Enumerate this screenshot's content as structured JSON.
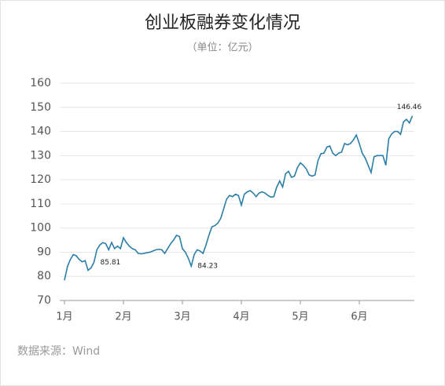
{
  "chart_data": {
    "type": "line",
    "title": "创业板融券变化情况",
    "subtitle": "（单位：亿元）",
    "source": "数据来源：Wind",
    "categories": [
      "1月",
      null,
      null,
      null,
      null,
      null,
      null,
      null,
      null,
      null,
      null,
      null,
      null,
      null,
      null,
      null,
      null,
      null,
      null,
      null,
      "2月",
      null,
      null,
      null,
      null,
      null,
      null,
      null,
      null,
      null,
      null,
      null,
      null,
      null,
      null,
      null,
      null,
      null,
      null,
      null,
      "3月",
      null,
      null,
      null,
      null,
      null,
      null,
      null,
      null,
      null,
      null,
      null,
      null,
      null,
      null,
      null,
      null,
      null,
      null,
      null,
      "4月",
      null,
      null,
      null,
      null,
      null,
      null,
      null,
      null,
      null,
      null,
      null,
      null,
      null,
      null,
      null,
      null,
      null,
      null,
      null,
      "5月",
      null,
      null,
      null,
      null,
      null,
      null,
      null,
      null,
      null,
      null,
      null,
      null,
      null,
      null,
      null,
      null,
      null,
      null,
      null,
      "6月",
      null,
      null,
      null,
      null,
      null,
      null,
      null,
      null,
      null,
      null,
      null,
      null,
      null,
      null,
      null,
      null,
      null,
      null
    ],
    "series": [
      {
        "color": "#2b7ea6",
        "values": [
          78.4,
          84,
          87,
          89,
          88.5,
          87,
          86,
          86.5,
          82.5,
          83.5,
          85.81,
          91,
          93,
          94,
          93.5,
          91,
          94,
          91.5,
          92.5,
          91.5,
          96,
          94,
          92.5,
          91.5,
          91,
          89.5,
          89.3,
          89.5,
          89.8,
          90,
          90.5,
          91,
          91.2,
          91,
          89.5,
          91.5,
          93.5,
          95,
          97,
          96.5,
          91.5,
          90,
          87.5,
          84.23,
          89,
          91,
          90.5,
          89.5,
          93,
          97,
          100.5,
          101,
          102,
          104,
          108,
          112,
          113.5,
          113,
          114,
          113.5,
          109.5,
          114,
          115,
          115.5,
          114.5,
          113,
          114.5,
          115,
          114.5,
          113.5,
          112.8,
          113,
          117,
          119.5,
          117,
          122.5,
          123.5,
          121,
          121.5,
          125,
          127,
          126,
          124.5,
          122,
          121.5,
          122,
          128,
          130.8,
          131,
          133.5,
          134,
          131,
          130,
          131,
          131.5,
          135,
          134.5,
          135,
          136.5,
          138.5,
          135,
          131,
          129,
          126,
          123,
          129.5,
          130,
          130,
          130,
          126,
          137,
          139,
          140,
          140,
          138.8,
          144,
          145,
          143.5,
          146.46
        ],
        "value_labels": [
          null,
          null,
          null,
          null,
          null,
          null,
          null,
          null,
          null,
          null,
          "85.81",
          null,
          null,
          null,
          null,
          null,
          null,
          null,
          null,
          null,
          null,
          null,
          null,
          null,
          null,
          null,
          null,
          null,
          null,
          null,
          null,
          null,
          null,
          null,
          null,
          null,
          null,
          null,
          null,
          null,
          null,
          null,
          null,
          "84.23",
          null,
          null,
          null,
          null,
          null,
          null,
          null,
          null,
          null,
          null,
          null,
          null,
          null,
          null,
          null,
          null,
          null,
          null,
          null,
          null,
          null,
          null,
          null,
          null,
          null,
          null,
          null,
          null,
          null,
          null,
          null,
          null,
          null,
          null,
          null,
          null,
          null,
          null,
          null,
          null,
          null,
          null,
          null,
          null,
          null,
          null,
          null,
          null,
          null,
          null,
          null,
          null,
          null,
          null,
          null,
          null,
          null,
          null,
          null,
          null,
          null,
          null,
          null,
          null,
          null,
          null,
          null,
          null,
          null,
          null,
          null,
          null,
          null,
          null,
          "146.46"
        ]
      }
    ],
    "ylim": [
      70,
      160
    ],
    "yticks": [
      70,
      80,
      90,
      100,
      110,
      120,
      130,
      140,
      150,
      160
    ],
    "grid": true
  }
}
